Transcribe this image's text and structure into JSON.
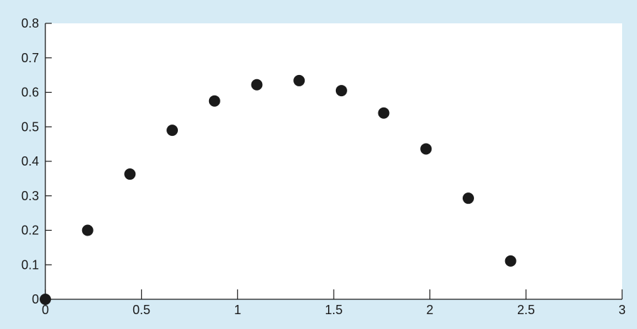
{
  "colors": {
    "background": "#d6ebf5",
    "plot_area": "#ffffff",
    "axis": "#1a1a1a",
    "marker": "#1a1a1a"
  },
  "chart_data": {
    "type": "scatter",
    "title": "",
    "xlabel": "",
    "ylabel": "",
    "xlim": [
      0,
      3
    ],
    "ylim": [
      0,
      0.8
    ],
    "xticks": [
      0,
      0.5,
      1,
      1.5,
      2,
      2.5,
      3
    ],
    "xtick_labels": [
      "0",
      "0.5",
      "1",
      "1.5",
      "2",
      "2.5",
      "3"
    ],
    "yticks": [
      0,
      0.1,
      0.2,
      0.3,
      0.4,
      0.5,
      0.6,
      0.7,
      0.8
    ],
    "ytick_labels": [
      "0",
      "0.1",
      "0.2",
      "0.3",
      "0.4",
      "0.5",
      "0.6",
      "0.7",
      "0.8"
    ],
    "grid": false,
    "series": [
      {
        "x": [
          0,
          0.22,
          0.44,
          0.66,
          0.88,
          1.1,
          1.32,
          1.54,
          1.76,
          1.98,
          2.2,
          2.42
        ],
        "y": [
          0,
          0.2,
          0.363,
          0.49,
          0.575,
          0.622,
          0.634,
          0.605,
          0.54,
          0.436,
          0.293,
          0.111
        ]
      }
    ]
  }
}
